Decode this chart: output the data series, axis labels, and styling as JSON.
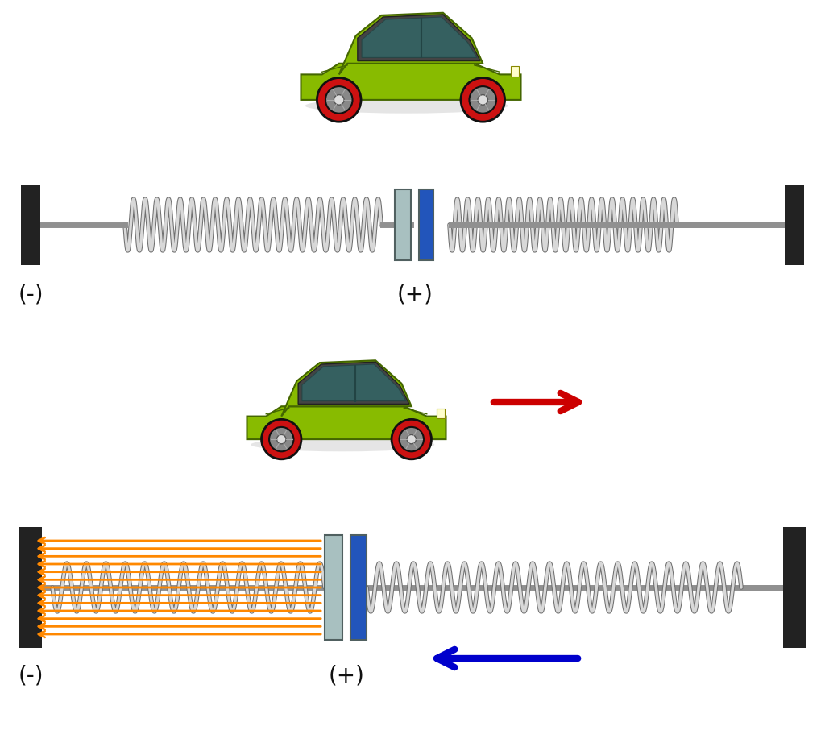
{
  "bg_color": "#ffffff",
  "wall_color": "#222222",
  "rod_color": "#909090",
  "spring_color": "#d8d8d8",
  "spring_edge_color": "#707070",
  "plate_outer_color": "#a8c0c0",
  "plate_inner_color": "#2255bb",
  "plate_outer_color2": "#90b0b0",
  "field_line_color": "#ff8800",
  "red_arrow_color": "#cc0000",
  "blue_arrow_color": "#0000cc",
  "label_color": "#111111",
  "car_body_color": "#88bb00",
  "car_roof_color": "#444444",
  "car_window_color": "#336666",
  "car_wheel_outer": "#cc1111",
  "car_wheel_inner": "#888888",
  "car_wheel_hub": "#dddddd",
  "car_body_edge": "#446600"
}
